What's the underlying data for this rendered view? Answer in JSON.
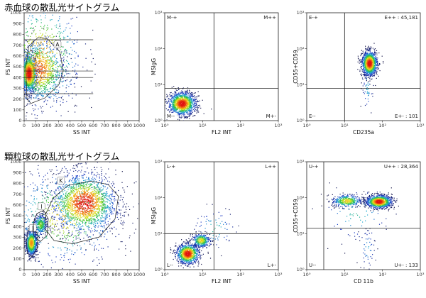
{
  "sections": {
    "top_title": "赤血球の散乱光サイトグラム",
    "bottom_title": "顆粒球の散乱光サイトグラム"
  },
  "chart_data": [
    {
      "id": "rbc-scatter",
      "type": "scatter",
      "xlabel": "SS INT",
      "ylabel": "FS INT",
      "xlim": [
        0,
        1000
      ],
      "ylim": [
        0,
        1000
      ],
      "x_ticks": [
        0,
        100,
        200,
        300,
        400,
        500,
        600,
        700,
        800,
        900,
        1000
      ],
      "y_ticks": [
        0,
        100,
        200,
        300,
        400,
        500,
        600,
        700,
        800,
        900,
        1000
      ],
      "gates": [
        {
          "label": "A"
        }
      ],
      "lines_y": [
        250,
        400,
        460,
        750
      ],
      "line_x_end": 600,
      "clusters": [
        {
          "cx": 40,
          "cy": 440,
          "sx": 35,
          "sy": 90,
          "n": 1300
        },
        {
          "cx": 130,
          "cy": 470,
          "sx": 110,
          "sy": 150,
          "n": 900
        },
        {
          "cx": 150,
          "cy": 600,
          "sx": 180,
          "sy": 280,
          "n": 700
        }
      ]
    },
    {
      "id": "rbc-msigg",
      "type": "scatter",
      "xlabel": "FL2 INT",
      "ylabel": "MSIgG",
      "x_scale": "log",
      "y_scale": "log",
      "xlim": [
        0,
        3
      ],
      "ylim": [
        0,
        3
      ],
      "x_ticks": [
        "10⁰",
        "10¹",
        "10²",
        "10³"
      ],
      "y_ticks": [
        "10⁰",
        "10¹",
        "10²",
        "10³"
      ],
      "quadrant_split": [
        1.3,
        0.9
      ],
      "quadrants": {
        "tl": "M-+",
        "tr": "M++",
        "bl": "M--",
        "br": "M+-"
      },
      "clusters": [
        {
          "cx": 0.45,
          "cy": 0.48,
          "sx": 0.18,
          "sy": 0.16,
          "n": 1400
        }
      ]
    },
    {
      "id": "rbc-cd55",
      "type": "scatter",
      "xlabel": "CD235a",
      "ylabel": "CD55+CD59",
      "x_scale": "log",
      "y_scale": "log",
      "xlim": [
        0,
        3
      ],
      "ylim": [
        0,
        3
      ],
      "x_ticks": [
        "10⁰",
        "10¹",
        "10²",
        "10³"
      ],
      "y_ticks": [
        "10⁰",
        "10¹",
        "10²",
        "10³"
      ],
      "quadrant_split": [
        1.0,
        0.9
      ],
      "quadrants": {
        "tl": "E-+",
        "tr": "E++ : 45,181",
        "bl": "E--",
        "br": "E+- : 101"
      },
      "clusters": [
        {
          "cx": 1.65,
          "cy": 1.6,
          "sx": 0.1,
          "sy": 0.17,
          "n": 1300
        },
        {
          "cx": 1.6,
          "cy": 0.9,
          "sx": 0.08,
          "sy": 0.35,
          "n": 60
        }
      ]
    },
    {
      "id": "gran-scatter",
      "type": "scatter",
      "xlabel": "SS INT",
      "ylabel": "FS INT",
      "xlim": [
        0,
        1000
      ],
      "ylim": [
        0,
        1000
      ],
      "x_ticks": [
        0,
        100,
        200,
        300,
        400,
        500,
        600,
        700,
        800,
        900,
        1000
      ],
      "y_ticks": [
        0,
        100,
        200,
        300,
        400,
        500,
        600,
        700,
        800,
        900,
        1000
      ],
      "gates": [
        {
          "label": "J"
        },
        {
          "label": "I"
        },
        {
          "label": "K"
        }
      ],
      "clusters": [
        {
          "cx": 60,
          "cy": 250,
          "sx": 25,
          "sy": 60,
          "n": 900
        },
        {
          "cx": 140,
          "cy": 420,
          "sx": 30,
          "sy": 50,
          "n": 350
        },
        {
          "cx": 520,
          "cy": 620,
          "sx": 140,
          "sy": 140,
          "n": 1800
        },
        {
          "cx": 350,
          "cy": 500,
          "sx": 250,
          "sy": 230,
          "n": 700
        }
      ]
    },
    {
      "id": "gran-msigg",
      "type": "scatter",
      "xlabel": "FL2 INT",
      "ylabel": "MSIgG",
      "x_scale": "log",
      "y_scale": "log",
      "xlim": [
        0,
        3
      ],
      "ylim": [
        0,
        3
      ],
      "x_ticks": [
        "10⁰",
        "10¹",
        "10²",
        "10³"
      ],
      "y_ticks": [
        "10⁰",
        "10¹",
        "10²",
        "10³"
      ],
      "quadrant_split": [
        1.3,
        1.0
      ],
      "quadrants": {
        "tl": "L-+",
        "tr": "L++",
        "bl": "L--",
        "br": "L+-"
      },
      "clusters": [
        {
          "cx": 0.6,
          "cy": 0.45,
          "sx": 0.15,
          "sy": 0.14,
          "n": 1000
        },
        {
          "cx": 0.95,
          "cy": 0.82,
          "sx": 0.12,
          "sy": 0.1,
          "n": 350
        },
        {
          "cx": 1.3,
          "cy": 1.15,
          "sx": 0.3,
          "sy": 0.3,
          "n": 80
        }
      ]
    },
    {
      "id": "gran-cd55",
      "type": "scatter",
      "xlabel": "CD 11b",
      "ylabel": "CD55+CD59",
      "x_scale": "log",
      "y_scale": "log",
      "xlim": [
        0,
        3
      ],
      "ylim": [
        0,
        3
      ],
      "x_ticks": [
        "10⁰",
        "10¹",
        "10²",
        "10³"
      ],
      "y_ticks": [
        "10⁰",
        "10¹",
        "10²",
        "10³"
      ],
      "quadrant_split": [
        0.45,
        1.15
      ],
      "quadrants": {
        "tl": "U-+",
        "tr": "U++ : 28,364",
        "bl": "U--",
        "br": "U+- : 133"
      },
      "clusters": [
        {
          "cx": 1.9,
          "cy": 1.9,
          "sx": 0.17,
          "sy": 0.09,
          "n": 1100
        },
        {
          "cx": 1.05,
          "cy": 1.92,
          "sx": 0.2,
          "sy": 0.09,
          "n": 400
        },
        {
          "cx": 1.3,
          "cy": 1.55,
          "sx": 0.5,
          "sy": 0.4,
          "n": 80
        },
        {
          "cx": 1.6,
          "cy": 0.6,
          "sx": 0.1,
          "sy": 0.3,
          "n": 50
        }
      ]
    }
  ]
}
